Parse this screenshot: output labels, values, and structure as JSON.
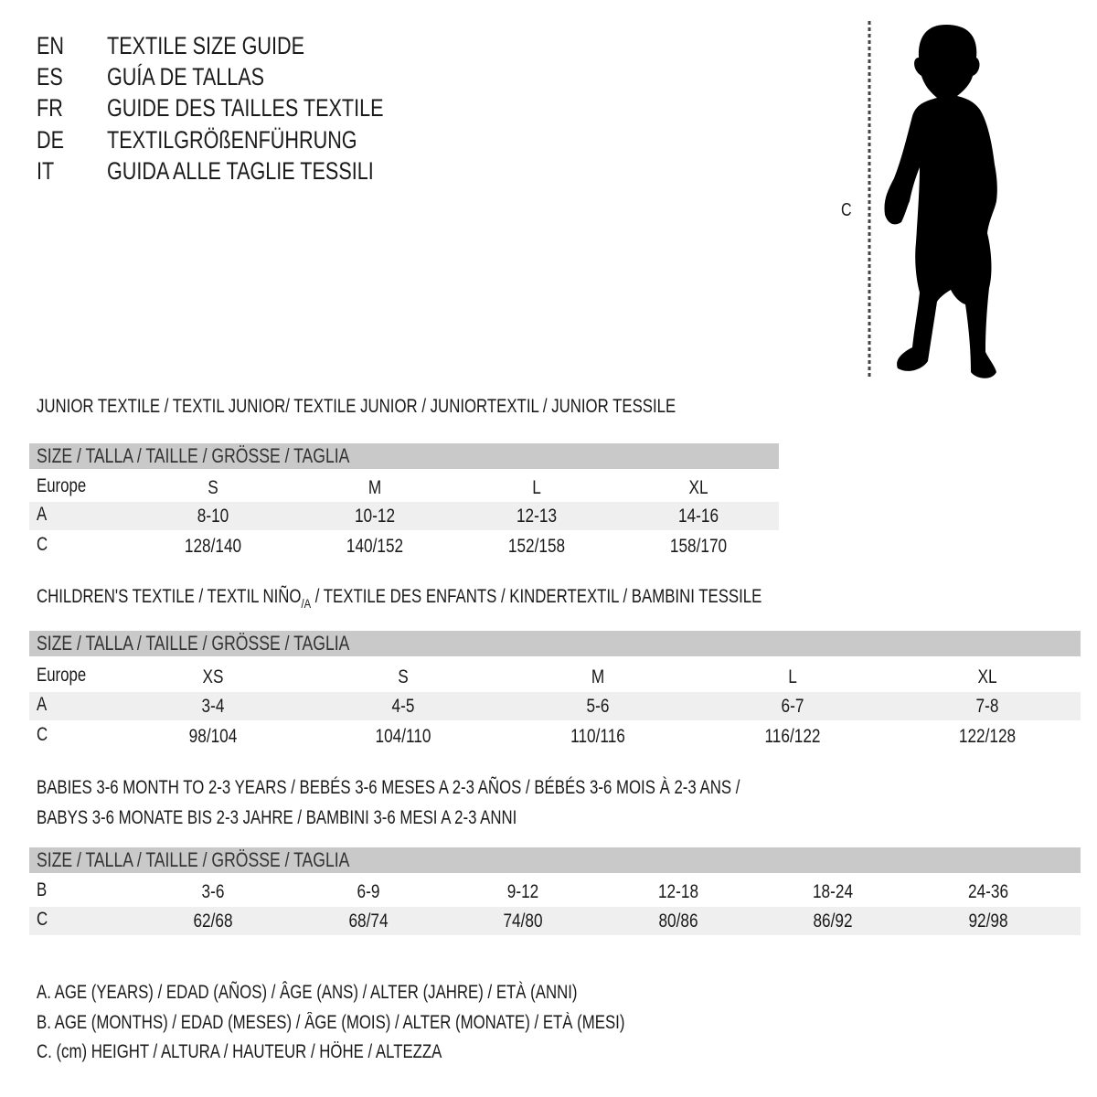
{
  "languages": [
    {
      "code": "EN",
      "title": "TEXTILE SIZE GUIDE"
    },
    {
      "code": "ES",
      "title": "GUÍA DE TALLAS"
    },
    {
      "code": "FR",
      "title": "GUIDE DES TAILLES TEXTILE"
    },
    {
      "code": "DE",
      "title": "TEXTILGRÖßENFÜHRUNG"
    },
    {
      "code": "IT",
      "title": "GUIDA ALLE TAGLIE TESSILI"
    }
  ],
  "figure": {
    "measure_label": "C"
  },
  "junior": {
    "heading": "JUNIOR TEXTILE / TEXTIL JUNIOR/ TEXTILE JUNIOR / JUNIORTEXTIL / JUNIOR TESSILE",
    "size_header": "SIZE / TALLA / TAILLE / GRÖSSE / TAGLIA",
    "rows": [
      {
        "label": "Europe",
        "values": [
          "S",
          "M",
          "L",
          "XL"
        ]
      },
      {
        "label": "A",
        "values": [
          "8-10",
          "10-12",
          "12-13",
          "14-16"
        ]
      },
      {
        "label": "C",
        "values": [
          "128/140",
          "140/152",
          "152/158",
          "158/170"
        ]
      }
    ]
  },
  "children": {
    "heading_pre": "CHILDREN'S TEXTILE / TEXTIL NIÑO",
    "heading_sub": "/A",
    "heading_post": " / TEXTILE DES ENFANTS / KINDERTEXTIL / BAMBINI TESSILE",
    "size_header": "SIZE / TALLA / TAILLE / GRÖSSE / TAGLIA",
    "rows": [
      {
        "label": "Europe",
        "values": [
          "XS",
          "S",
          "M",
          "L",
          "XL"
        ]
      },
      {
        "label": "A",
        "values": [
          "3-4",
          "4-5",
          "5-6",
          "6-7",
          "7-8"
        ]
      },
      {
        "label": "C",
        "values": [
          "98/104",
          "104/110",
          "110/116",
          "116/122",
          "122/128"
        ]
      }
    ]
  },
  "babies": {
    "heading_line1": "BABIES 3-6 MONTH TO 2-3 YEARS / BEBÉS 3-6 MESES A 2-3 AÑOS / BÉBÉS 3-6 MOIS À 2-3 ANS /",
    "heading_line2": "BABYS 3-6 MONATE BIS 2-3 JAHRE / BAMBINI 3-6 MESI A 2-3 ANNI",
    "size_header": "SIZE / TALLA / TAILLE / GRÖSSE / TAGLIA",
    "rows": [
      {
        "label": "B",
        "values": [
          "3-6",
          "6-9",
          "9-12",
          "12-18",
          "18-24",
          "24-36"
        ]
      },
      {
        "label": "C",
        "values": [
          "62/68",
          "68/74",
          "74/80",
          "80/86",
          "86/92",
          "92/98"
        ]
      }
    ]
  },
  "legend": [
    "A. AGE (YEARS) / EDAD (AÑOS) / ÂGE (ANS) / ALTER (JAHRE) / ETÀ (ANNI)",
    "B. AGE (MONTHS) / EDAD (MESES) / ÂGE (MOIS) / ALTER (MONATE) / ETÀ (MESI)",
    "C. (cm) HEIGHT / ALTURA / HAUTEUR / HÖHE / ALTEZZA"
  ],
  "colors": {
    "header_bar": "#c9c9c9",
    "alt_row": "#efefef",
    "text": "#1a1a1a"
  }
}
